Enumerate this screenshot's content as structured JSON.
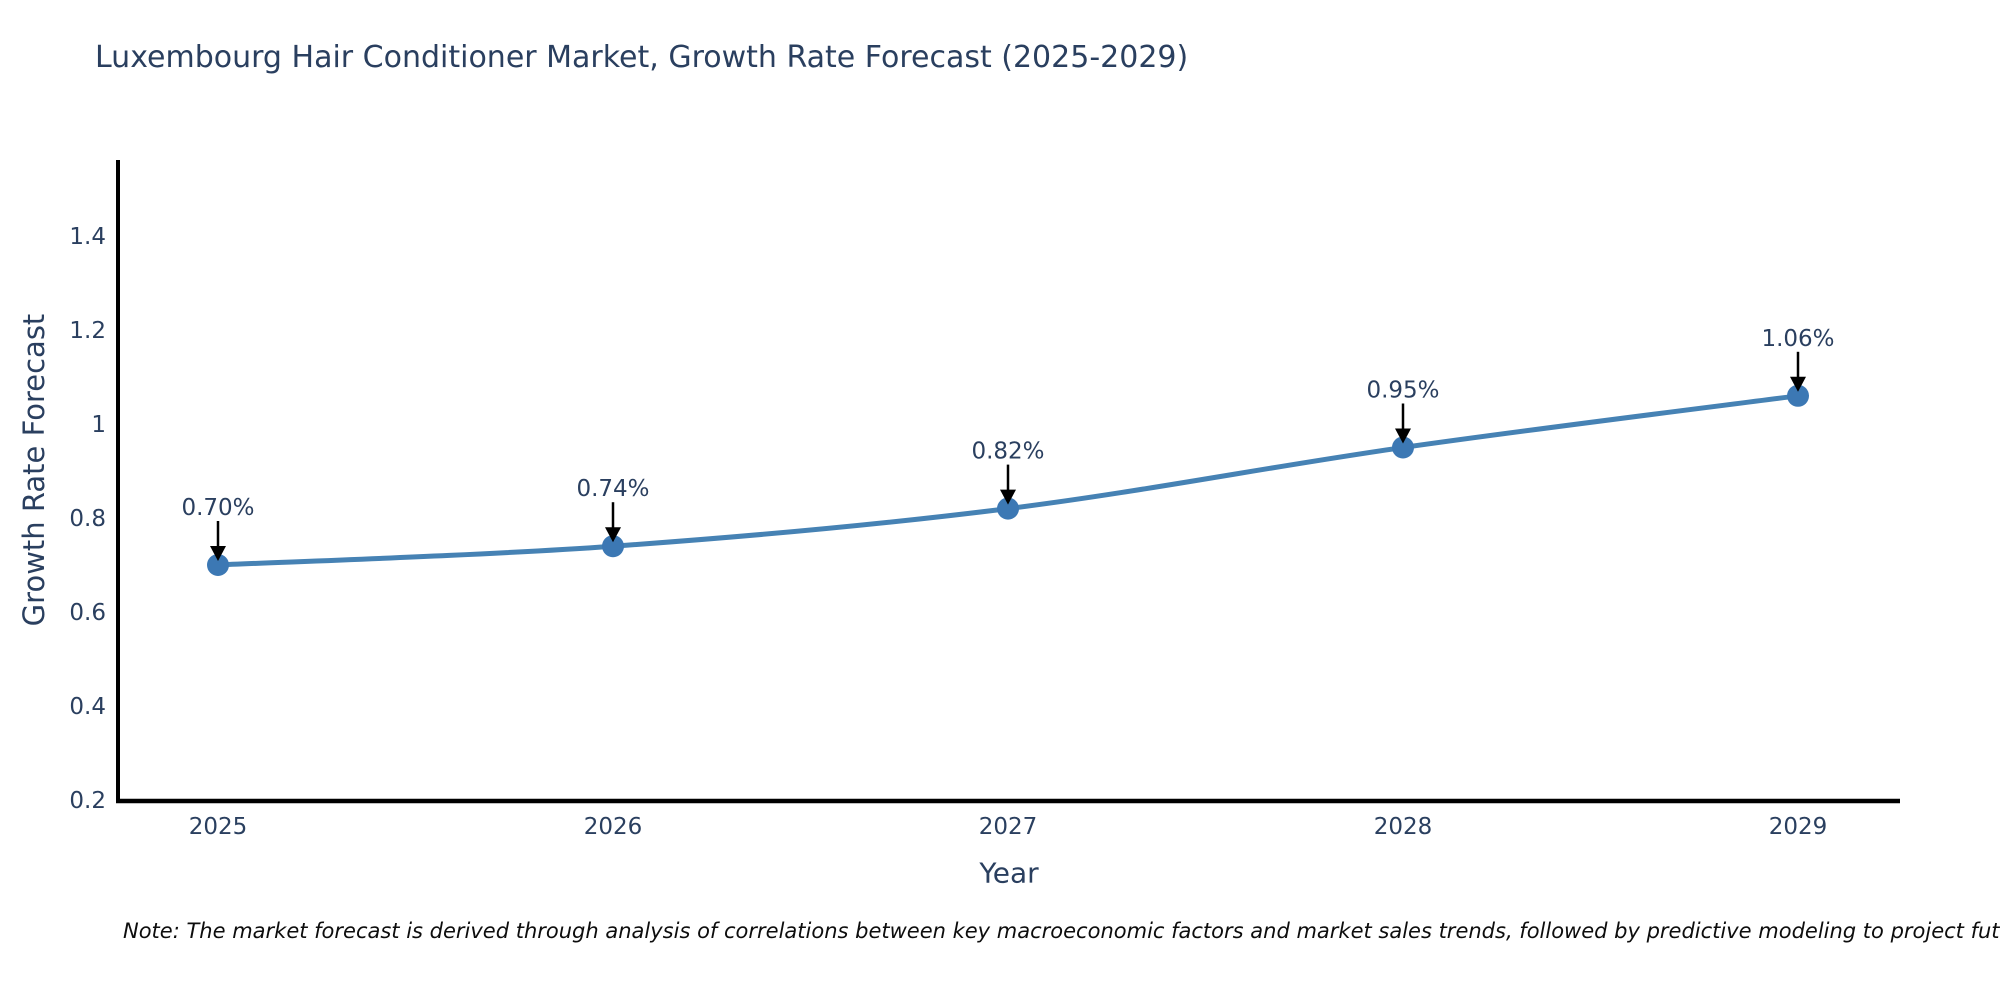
{
  "title": "Luxembourg Hair Conditioner Market, Growth Rate Forecast (2025-2029)",
  "note": "Note: The market forecast is derived through analysis of correlations between key macroeconomic factors and market sales trends, followed by predictive modeling to project future sales",
  "colors": {
    "background": "#ffffff",
    "title_text": "#2a3f5f",
    "tick_text": "#2a3f5f",
    "axis_spine": "#000000",
    "line": "#4682b4",
    "marker": "#3c78b4",
    "annotation_text": "#2a3f5f",
    "annotation_arrow": "#000000",
    "note_text": "#0d0d0d"
  },
  "chart_data": {
    "type": "line",
    "title": "Luxembourg Hair Conditioner Market, Growth Rate Forecast (2025-2029)",
    "xlabel": "Year",
    "ylabel": "Growth Rate Forecast",
    "x": [
      "2025",
      "2026",
      "2027",
      "2028",
      "2029"
    ],
    "series": [
      {
        "name": "Growth Rate Forecast",
        "values": [
          0.7,
          0.74,
          0.82,
          0.95,
          1.06
        ]
      }
    ],
    "point_labels": [
      "0.70%",
      "0.74%",
      "0.82%",
      "0.95%",
      "1.06%"
    ],
    "yticks": [
      "0.2",
      "0.4",
      "0.6",
      "0.8",
      "1",
      "1.2",
      "1.4"
    ],
    "ylim": [
      0.2,
      1.56
    ],
    "line_shape": "spline",
    "grid": false,
    "legend_visible": false,
    "annotations_have_arrows": true
  }
}
